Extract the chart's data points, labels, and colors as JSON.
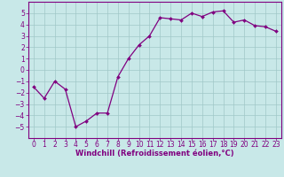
{
  "x": [
    0,
    1,
    2,
    3,
    4,
    5,
    6,
    7,
    8,
    9,
    10,
    11,
    12,
    13,
    14,
    15,
    16,
    17,
    18,
    19,
    20,
    21,
    22,
    23
  ],
  "y": [
    -1.5,
    -2.5,
    -1.0,
    -1.7,
    -5.0,
    -4.5,
    -3.8,
    -3.8,
    -0.6,
    1.0,
    2.2,
    3.0,
    4.6,
    4.5,
    4.4,
    5.0,
    4.7,
    5.1,
    5.2,
    4.2,
    4.4,
    3.9,
    3.8,
    3.4
  ],
  "line_color": "#800080",
  "marker": "D",
  "marker_size": 2.0,
  "line_width": 0.9,
  "bg_color": "#c8e8e8",
  "grid_color": "#a0c8c8",
  "xlabel": "Windchill (Refroidissement éolien,°C)",
  "xlabel_color": "#800080",
  "xlabel_fontsize": 6.0,
  "ylim": [
    -6,
    6
  ],
  "xlim": [
    -0.5,
    23.5
  ],
  "yticks": [
    -5,
    -4,
    -3,
    -2,
    -1,
    0,
    1,
    2,
    3,
    4,
    5
  ],
  "xtick_labels": [
    "0",
    "1",
    "2",
    "3",
    "4",
    "5",
    "6",
    "7",
    "8",
    "9",
    "10",
    "11",
    "12",
    "13",
    "14",
    "15",
    "16",
    "17",
    "18",
    "19",
    "20",
    "21",
    "22",
    "23"
  ],
  "tick_color": "#800080",
  "tick_fontsize": 5.5,
  "spine_color": "#800080"
}
